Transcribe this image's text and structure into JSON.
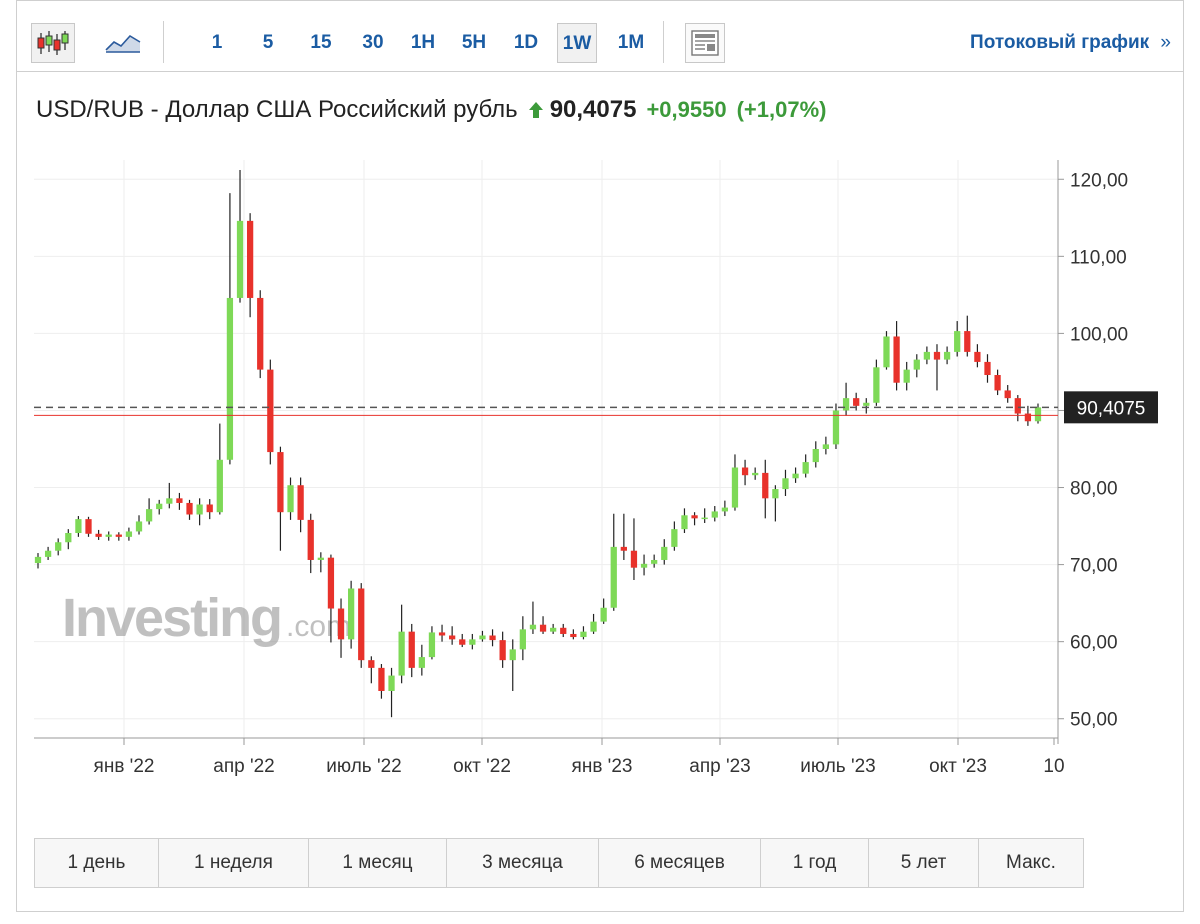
{
  "toolbar": {
    "intervals": [
      "1",
      "5",
      "15",
      "30",
      "1H",
      "5H",
      "1D",
      "1W",
      "1M"
    ],
    "active_interval": "1W",
    "stream_label": "Потоковый график",
    "stream_arrow": "»"
  },
  "header": {
    "title": "USD/RUB - Доллар США Российский рубль",
    "price": "90,4075",
    "change": "+0,9550",
    "change_pct": "(+1,07%)"
  },
  "colors": {
    "up": "#7ed957",
    "down": "#e8322b",
    "link": "#1b5ca3",
    "positive": "#3c9a3a"
  },
  "watermark": {
    "main": "Investing",
    "suffix": ".com"
  },
  "ranges": [
    "1 день",
    "1 неделя",
    "1 месяц",
    "3 месяца",
    "6 месяцев",
    "1 год",
    "5 лет",
    "Макс."
  ],
  "chart_data": {
    "type": "candlestick",
    "price_label": "90,4075",
    "last_value": 90.4075,
    "ylim": [
      47.5,
      122.5
    ],
    "y_ticks": [
      {
        "value": 50,
        "label": "50,00"
      },
      {
        "value": 60,
        "label": "60,00"
      },
      {
        "value": 70,
        "label": "70,00"
      },
      {
        "value": 80,
        "label": "80,00"
      },
      {
        "value": 90,
        "label": "90,00"
      },
      {
        "value": 100,
        "label": "100,00"
      },
      {
        "value": 110,
        "label": "110,00"
      },
      {
        "value": 120,
        "label": "120,00"
      }
    ],
    "x_ticks": [
      "янв '22",
      "апр '22",
      "июль '22",
      "окт '22",
      "янв '23",
      "апр '23",
      "июль '23",
      "окт '23",
      "10"
    ],
    "candles": [
      [
        70.2,
        71.0,
        69.5,
        71.5
      ],
      [
        71.0,
        71.8,
        70.6,
        72.3
      ],
      [
        71.8,
        72.9,
        71.2,
        73.4
      ],
      [
        72.9,
        74.1,
        72.0,
        74.6
      ],
      [
        74.1,
        75.9,
        73.6,
        76.3
      ],
      [
        75.9,
        74.0,
        73.6,
        76.2
      ],
      [
        74.0,
        73.6,
        73.2,
        74.5
      ],
      [
        73.6,
        73.9,
        73.1,
        74.3
      ],
      [
        73.9,
        73.6,
        73.1,
        74.2
      ],
      [
        73.6,
        74.3,
        73.1,
        74.8
      ],
      [
        74.3,
        75.6,
        73.9,
        76.4
      ],
      [
        75.6,
        77.2,
        75.2,
        78.6
      ],
      [
        77.2,
        77.9,
        76.5,
        78.4
      ],
      [
        77.9,
        78.6,
        77.3,
        80.6
      ],
      [
        78.6,
        78.0,
        77.1,
        79.3
      ],
      [
        78.0,
        76.5,
        75.8,
        78.4
      ],
      [
        76.5,
        77.8,
        75.1,
        78.6
      ],
      [
        77.8,
        76.8,
        75.9,
        78.5
      ],
      [
        76.8,
        83.6,
        76.5,
        88.3
      ],
      [
        83.6,
        104.6,
        83.0,
        118.2
      ],
      [
        104.6,
        114.6,
        104.0,
        121.2
      ],
      [
        114.6,
        104.6,
        102.1,
        115.6
      ],
      [
        104.6,
        95.3,
        94.2,
        105.6
      ],
      [
        95.3,
        84.6,
        83.0,
        96.6
      ],
      [
        84.6,
        76.8,
        71.8,
        85.3
      ],
      [
        76.8,
        80.3,
        75.8,
        81.3
      ],
      [
        80.3,
        75.8,
        74.2,
        81.3
      ],
      [
        75.8,
        70.6,
        68.9,
        76.6
      ],
      [
        70.6,
        70.9,
        69.0,
        71.6
      ],
      [
        70.9,
        64.3,
        59.9,
        71.3
      ],
      [
        64.3,
        60.3,
        57.9,
        65.6
      ],
      [
        60.3,
        66.9,
        59.1,
        67.9
      ],
      [
        66.9,
        57.6,
        56.6,
        67.6
      ],
      [
        57.6,
        56.6,
        54.6,
        58.1
      ],
      [
        56.6,
        53.6,
        52.6,
        57.1
      ],
      [
        53.6,
        55.6,
        50.2,
        56.6
      ],
      [
        55.6,
        61.3,
        54.6,
        64.8
      ],
      [
        61.3,
        56.6,
        55.4,
        62.3
      ],
      [
        56.6,
        58.0,
        55.6,
        59.6
      ],
      [
        58.0,
        61.2,
        57.7,
        62.0
      ],
      [
        61.2,
        60.8,
        60.0,
        62.2
      ],
      [
        60.8,
        60.3,
        59.6,
        62.0
      ],
      [
        60.3,
        59.6,
        59.3,
        61.0
      ],
      [
        59.6,
        60.3,
        59.0,
        61.0
      ],
      [
        60.3,
        60.8,
        60.0,
        61.4
      ],
      [
        60.8,
        60.2,
        59.4,
        61.6
      ],
      [
        60.2,
        57.6,
        56.6,
        61.3
      ],
      [
        57.6,
        59.0,
        53.6,
        60.3
      ],
      [
        59.0,
        61.6,
        57.6,
        63.3
      ],
      [
        61.6,
        62.2,
        61.0,
        65.2
      ],
      [
        62.2,
        61.3,
        61.0,
        63.3
      ],
      [
        61.3,
        61.8,
        61.0,
        62.3
      ],
      [
        61.8,
        61.0,
        60.6,
        62.3
      ],
      [
        61.0,
        60.6,
        60.3,
        61.6
      ],
      [
        60.6,
        61.3,
        60.3,
        62.0
      ],
      [
        61.3,
        62.6,
        61.0,
        63.6
      ],
      [
        62.6,
        64.4,
        62.3,
        65.6
      ],
      [
        64.4,
        72.3,
        64.0,
        76.6
      ],
      [
        72.3,
        71.8,
        70.6,
        76.6
      ],
      [
        71.8,
        69.6,
        68.0,
        76.0
      ],
      [
        69.6,
        70.1,
        68.6,
        71.3
      ],
      [
        70.1,
        70.6,
        69.6,
        71.3
      ],
      [
        70.6,
        72.3,
        70.0,
        73.3
      ],
      [
        72.3,
        74.6,
        71.8,
        75.6
      ],
      [
        74.6,
        76.4,
        74.1,
        77.3
      ],
      [
        76.4,
        76.0,
        75.1,
        76.8
      ],
      [
        76.0,
        76.1,
        75.4,
        77.3
      ],
      [
        76.1,
        76.9,
        75.6,
        77.6
      ],
      [
        76.9,
        77.4,
        76.3,
        78.3
      ],
      [
        77.4,
        82.6,
        77.0,
        84.3
      ],
      [
        82.6,
        81.6,
        80.3,
        83.6
      ],
      [
        81.6,
        81.9,
        81.0,
        82.6
      ],
      [
        81.9,
        78.6,
        76.0,
        83.6
      ],
      [
        78.6,
        79.8,
        75.6,
        80.3
      ],
      [
        79.8,
        81.2,
        78.9,
        82.3
      ],
      [
        81.2,
        81.8,
        80.6,
        82.6
      ],
      [
        81.8,
        83.3,
        81.3,
        84.3
      ],
      [
        83.3,
        85.0,
        82.6,
        86.0
      ],
      [
        85.0,
        85.6,
        84.3,
        86.6
      ],
      [
        85.6,
        90.0,
        85.0,
        90.9
      ],
      [
        90.0,
        91.6,
        89.3,
        93.6
      ],
      [
        91.6,
        90.6,
        90.0,
        92.3
      ],
      [
        90.6,
        91.0,
        89.6,
        91.6
      ],
      [
        91.0,
        95.6,
        90.6,
        96.6
      ],
      [
        95.6,
        99.6,
        95.3,
        100.3
      ],
      [
        99.6,
        93.6,
        92.6,
        101.6
      ],
      [
        93.6,
        95.3,
        92.6,
        96.3
      ],
      [
        95.3,
        96.6,
        94.3,
        97.3
      ],
      [
        96.6,
        97.6,
        96.0,
        98.3
      ],
      [
        97.6,
        96.6,
        92.6,
        98.6
      ],
      [
        96.6,
        97.6,
        96.0,
        98.3
      ],
      [
        97.6,
        100.3,
        97.0,
        101.6
      ],
      [
        100.3,
        97.6,
        97.0,
        102.3
      ],
      [
        97.6,
        96.3,
        95.6,
        98.6
      ],
      [
        96.3,
        94.6,
        93.6,
        97.3
      ],
      [
        94.6,
        92.6,
        92.0,
        95.3
      ],
      [
        92.6,
        91.6,
        91.0,
        93.3
      ],
      [
        91.6,
        89.6,
        88.6,
        92.0
      ],
      [
        89.6,
        88.6,
        88.0,
        90.6
      ],
      [
        88.6,
        90.4,
        88.3,
        90.9
      ]
    ]
  }
}
